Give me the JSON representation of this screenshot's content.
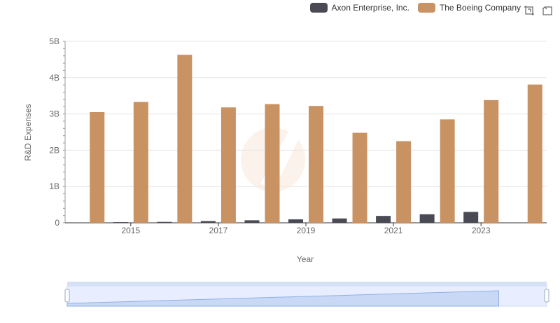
{
  "legend": {
    "series_a": "Axon Enterprise, Inc.",
    "series_b": "The Boeing Company"
  },
  "toolbox": {
    "icons": [
      "zoom-icon",
      "restore-icon"
    ]
  },
  "chart_data": {
    "type": "bar",
    "title": "",
    "xlabel": "Year",
    "ylabel": "R&D Expenses",
    "x": [
      2014,
      2015,
      2016,
      2017,
      2018,
      2019,
      2020,
      2021,
      2022,
      2023,
      2024
    ],
    "x_tick_labels": [
      "2015",
      "2017",
      "2019",
      "2021",
      "2023"
    ],
    "x_tick_values": [
      2015,
      2017,
      2019,
      2021,
      2023
    ],
    "ylim": [
      0,
      5000000000
    ],
    "y_ticks": [
      0,
      1000000000,
      2000000000,
      3000000000,
      4000000000,
      5000000000
    ],
    "y_tick_labels": [
      "0",
      "1B",
      "2B",
      "3B",
      "4B",
      "5B"
    ],
    "grid": true,
    "legend_position": "top-right",
    "series": [
      {
        "name": "Axon Enterprise, Inc.",
        "color": "#4a4a55",
        "values": [
          null,
          18000000,
          25000000,
          48000000,
          70000000,
          95000000,
          120000000,
          190000000,
          235000000,
          300000000,
          null
        ]
      },
      {
        "name": "The Boeing Company",
        "color": "#c99262",
        "values": [
          3050000000,
          3330000000,
          4630000000,
          3180000000,
          3270000000,
          3220000000,
          2480000000,
          2250000000,
          2850000000,
          3380000000,
          3810000000
        ]
      }
    ],
    "datazoom": {
      "start": 0,
      "end": 100
    }
  }
}
